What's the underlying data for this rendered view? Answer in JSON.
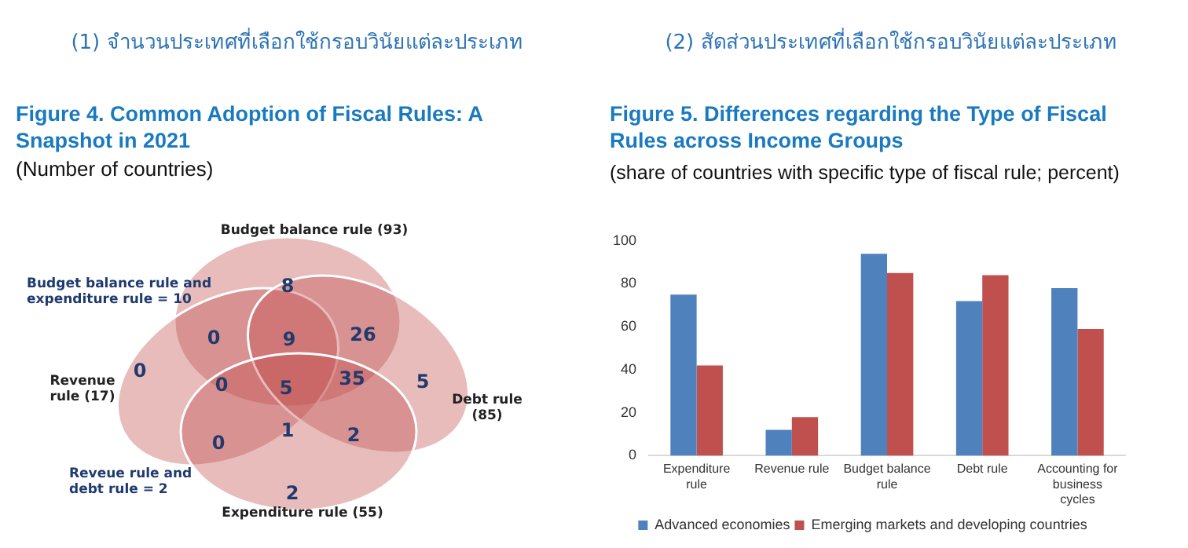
{
  "chart_data": [
    {
      "type": "other",
      "title": "(1) จำนวนประเทศที่เลือกใช้กรอบวินัยแต่ละประเภท",
      "subtitle": "Figure 4. Common Adoption of Fiscal Rules: A Snapshot in 2021",
      "annotations": [
        "(Number of countries)",
        "Budget balance rule (93)",
        "Budget balance rule and expenditure rule = 10",
        "Revenue rule (17)",
        "Debt rule (85)",
        "Reveue rule and debt rule = 2",
        "Expenditure rule (55)",
        "8",
        "0",
        "9",
        "26",
        "0",
        "0",
        "5",
        "35",
        "5",
        "0",
        "1",
        "2",
        "2"
      ],
      "color": "#c0504d"
    },
    {
      "type": "bar",
      "title": "(2) สัดส่วนประเทศที่เลือกใช้กรอบวินัยแต่ละประเภท",
      "subtitle": "Figure 5. Differences regarding the Type of Fiscal Rules across Income Groups",
      "annotations": [
        "(share of countries with specific type of fiscal rule; percent)"
      ],
      "categories": [
        "Expenditure rule",
        "Revenue rule",
        "Budget balance rule",
        "Debt rule",
        "Accounting for business cycles"
      ],
      "series": [
        {
          "name": "Advanced economies",
          "color": "#4f81bd",
          "values": [
            75,
            12,
            94,
            72,
            78
          ]
        },
        {
          "name": "Emerging markets and developing countries",
          "color": "#c0504d",
          "values": [
            42,
            18,
            85,
            84,
            59
          ]
        }
      ],
      "ylim": [
        0,
        100
      ],
      "yticks": [
        0,
        20,
        40,
        60,
        80,
        100
      ],
      "grid": false,
      "legend": "bottom"
    }
  ]
}
